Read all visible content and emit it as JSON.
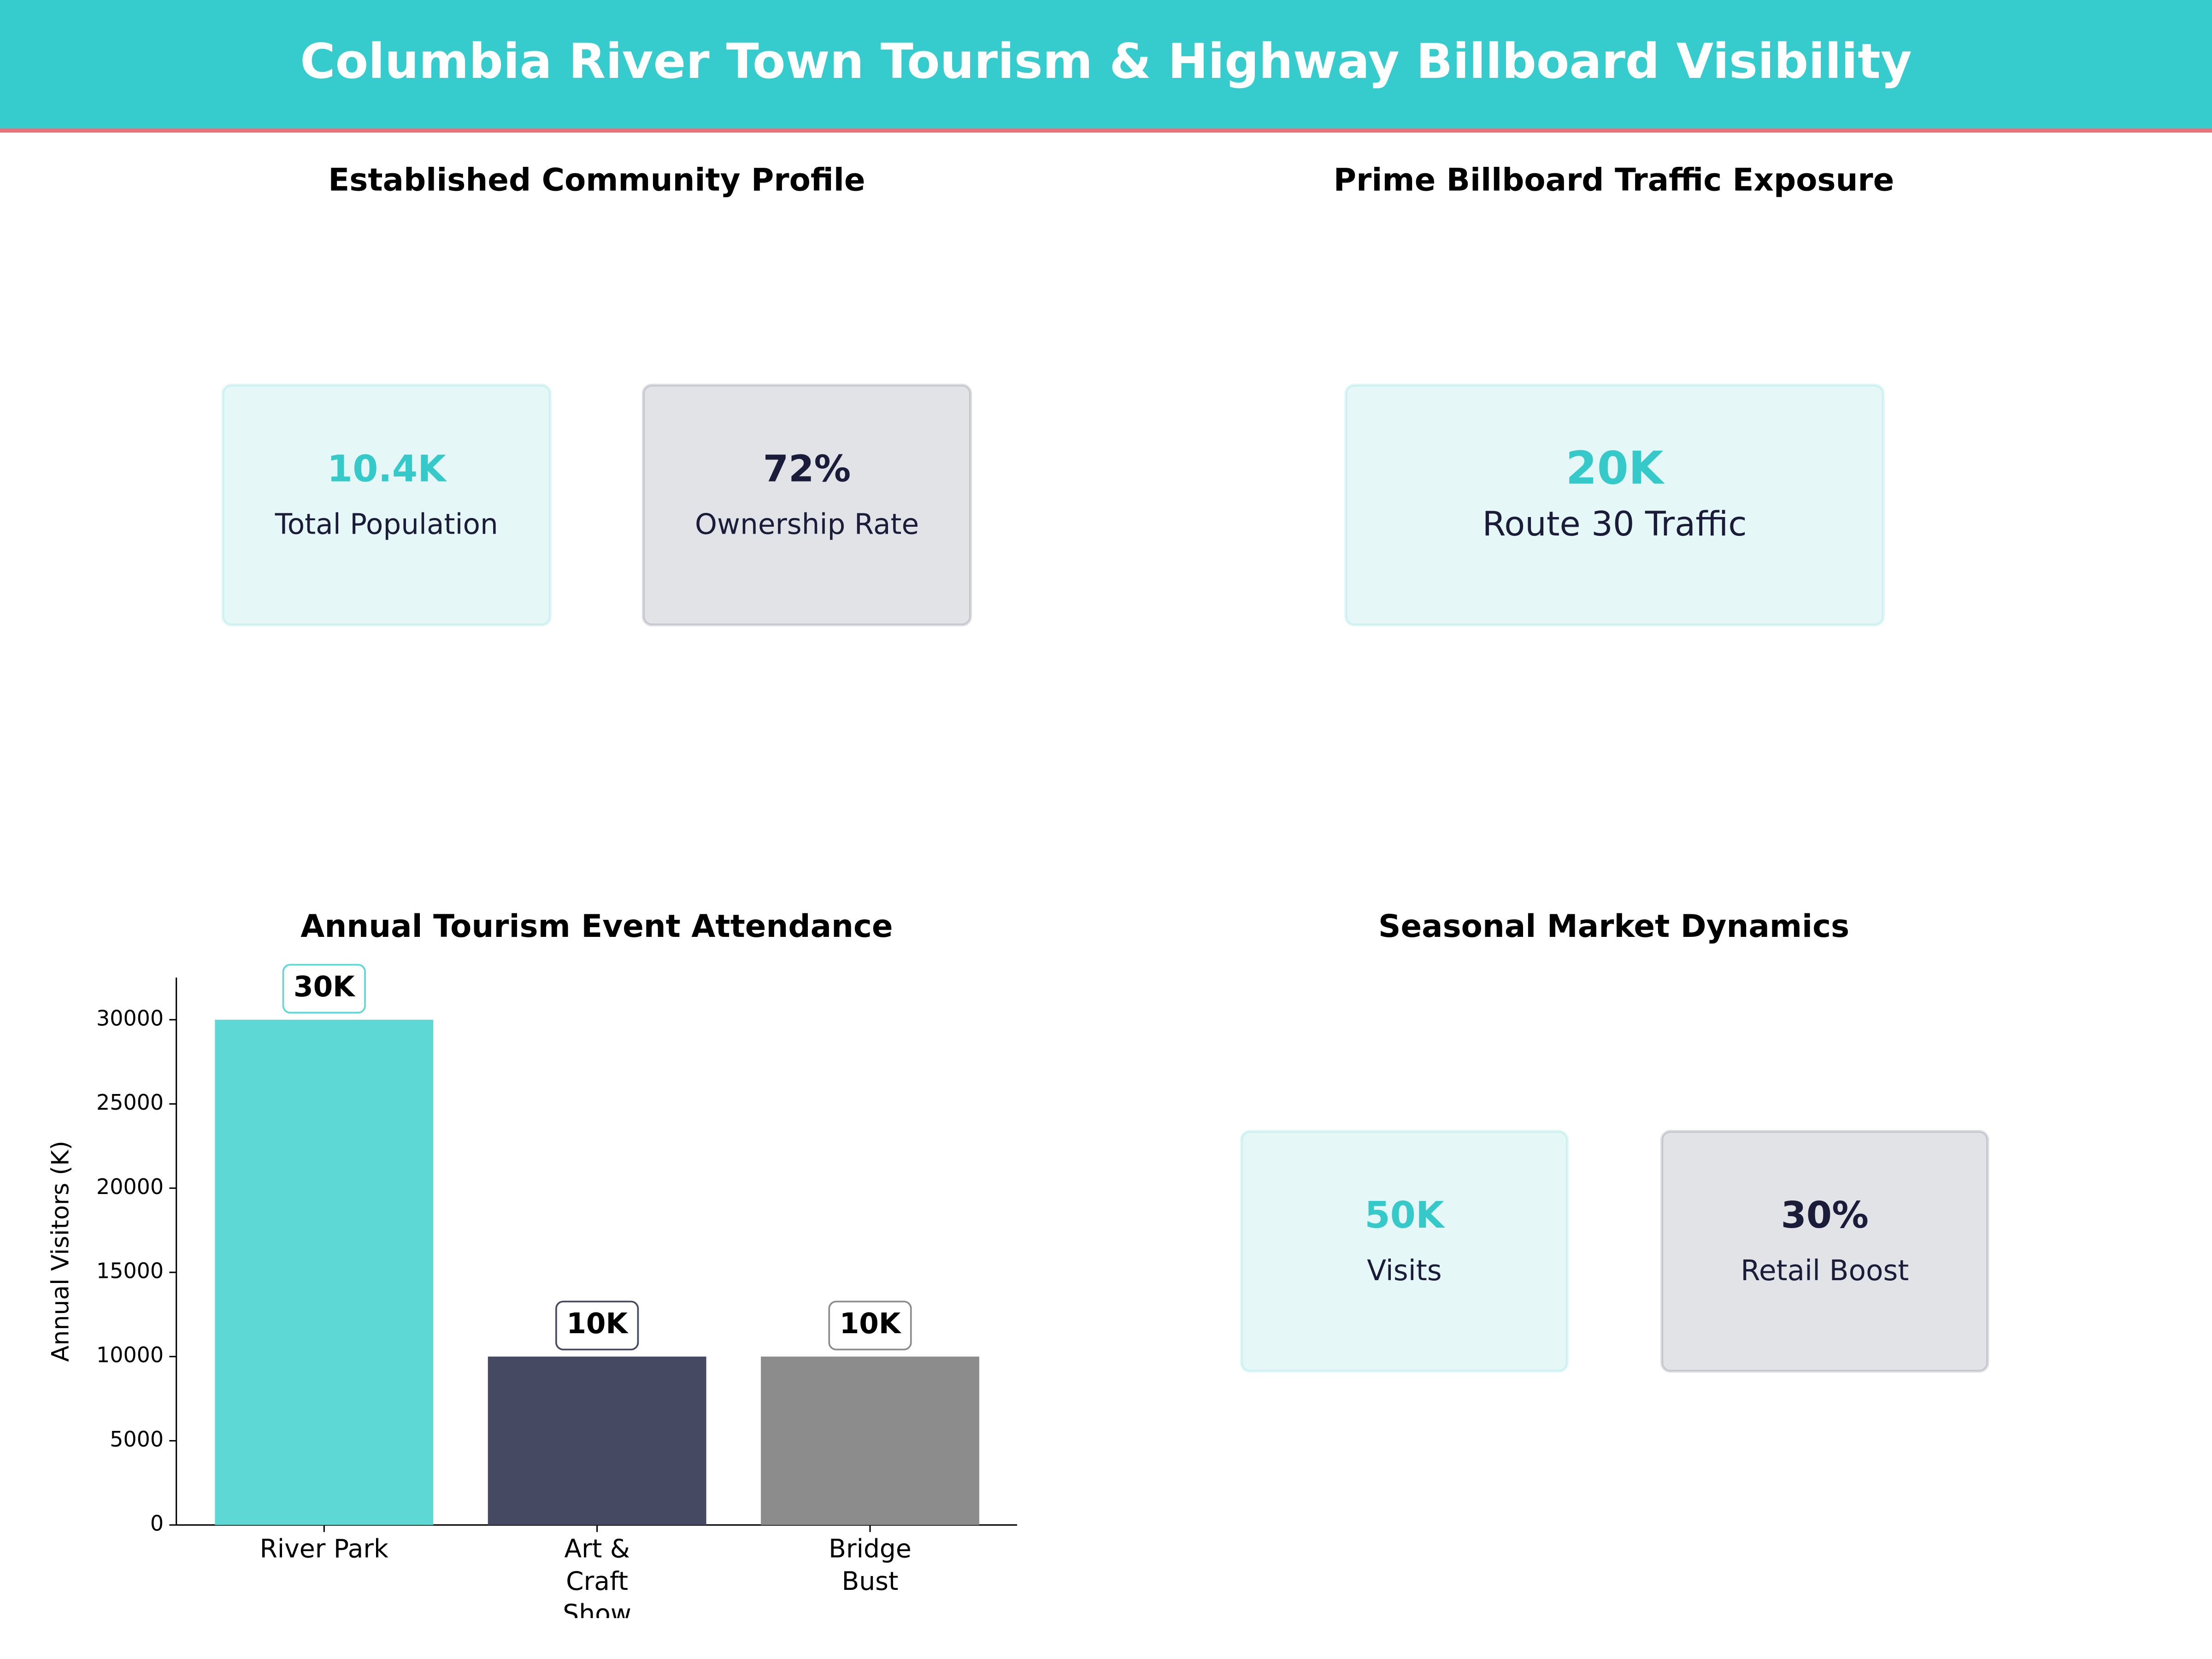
{
  "title": "Columbia River Town Tourism & Highway Billboard Visibility",
  "panels": [
    {
      "title": "Established Community Profile",
      "cards": [
        {
          "value": "10.4K",
          "label": "Total Population",
          "color": "#35c9c9",
          "background": "#e5f7f7"
        },
        {
          "value": "72%",
          "label": "Ownership Rate",
          "color": "#1a1c3a",
          "background": "#e2e3e7"
        }
      ]
    },
    {
      "title": "Prime Billboard Traffic Exposure",
      "cards": [
        {
          "value": "20K",
          "label": "Route 30 Traffic",
          "color": "#35c9c9",
          "background": "#e5f7f7"
        }
      ]
    },
    {
      "title": "Seasonal Market Dynamics",
      "cards": [
        {
          "value": "50K",
          "label": "Visits",
          "color": "#35c9c9",
          "background": "#e5f7f7"
        },
        {
          "value": "30%",
          "label": "Retail Boost",
          "color": "#1a1c3a",
          "background": "#e2e3e7"
        }
      ]
    }
  ],
  "chart_data": {
    "type": "bar",
    "title": "Annual Tourism Event Attendance",
    "y_label": "Annual Visitors (K)",
    "categories": [
      "River Park",
      "Art & Craft Show",
      "Bridge Bust"
    ],
    "values": [
      30000,
      10000,
      10000
    ],
    "value_labels": [
      "30K",
      "10K",
      "10K"
    ],
    "colors": [
      "#5dd8d5",
      "#454a62",
      "#8c8c8c"
    ],
    "ylim": [
      0,
      32500
    ],
    "yticks": [
      0,
      5000,
      10000,
      15000,
      20000,
      25000,
      30000
    ]
  }
}
